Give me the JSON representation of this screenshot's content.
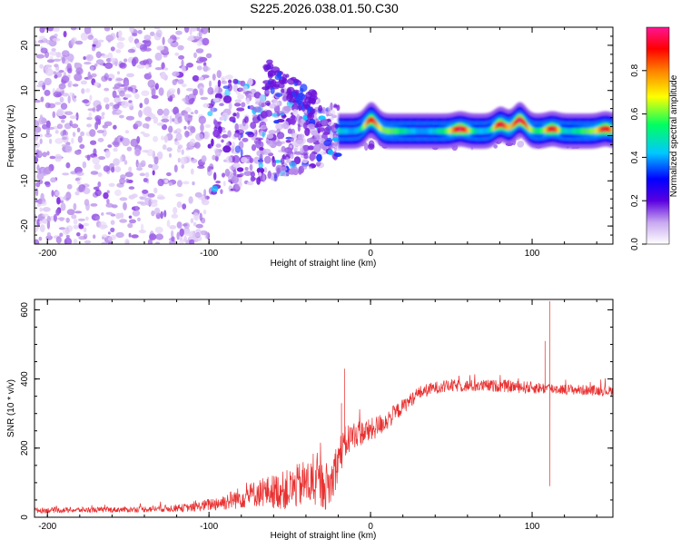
{
  "page_title": "S225.2026.038.01.50.C30",
  "colors": {
    "signal": "#e83030",
    "scatter": "#7b1fd6",
    "axis": "#000000",
    "background": "#ffffff"
  },
  "chart_data": [
    {
      "type": "heatmap",
      "title": "S225.2026.038.01.50.C30",
      "xlabel": "Height of straight line (km)",
      "ylabel": "Frequency (Hz)",
      "xlim": [
        -208,
        150
      ],
      "ylim": [
        -24,
        24
      ],
      "xticks": [
        -200,
        -100,
        0,
        100
      ],
      "yticks": [
        -20,
        -10,
        0,
        10,
        20
      ],
      "xtick_labels": [
        "-200",
        "-100",
        "0",
        "100"
      ],
      "ytick_labels": [
        "-20",
        "-10",
        "0",
        "10",
        "20"
      ],
      "colorbar": {
        "label": "Normalized spectral amplitude",
        "range": [
          0,
          1
        ],
        "ticks": [
          0.0,
          0.2,
          0.4,
          0.6,
          0.8
        ],
        "tick_labels": [
          "0.0",
          "0.2",
          "0.4",
          "0.6",
          "0.8"
        ],
        "colormap": [
          "#ffffff",
          "#5a00e0",
          "#0000ff",
          "#00c8ff",
          "#00ff60",
          "#ffff00",
          "#ff8000",
          "#ff0000",
          "#ff1493"
        ]
      },
      "band": {
        "x_start": -20,
        "x_end": 150,
        "frequency_center": 1.0,
        "frequency_halfwidth": 1.5,
        "peaks": [
          {
            "x": 0,
            "f": 3.5,
            "amp": 0.85
          },
          {
            "x": 55,
            "f": 1.5,
            "amp": 0.95
          },
          {
            "x": 80,
            "f": 2.5,
            "amp": 0.9
          },
          {
            "x": 92,
            "f": 3.5,
            "amp": 0.95
          },
          {
            "x": 112,
            "f": 1.5,
            "amp": 0.9
          },
          {
            "x": 145,
            "f": 1.5,
            "amp": 0.9
          }
        ]
      }
    },
    {
      "type": "line",
      "xlabel": "Height of straight line (km)",
      "ylabel": "SNR (10 * v/v)",
      "xlim": [
        -208,
        150
      ],
      "ylim": [
        0,
        630
      ],
      "xticks": [
        -200,
        -100,
        0,
        100
      ],
      "yticks": [
        0,
        200,
        400,
        600
      ],
      "xtick_labels": [
        "-200",
        "-100",
        "0",
        "100"
      ],
      "ytick_labels": [
        "0",
        "200",
        "400",
        "600"
      ],
      "series": [
        {
          "name": "SNR",
          "trend_x": [
            -208,
            -150,
            -110,
            -90,
            -70,
            -50,
            -40,
            -25,
            -20,
            -15,
            -10,
            0,
            10,
            20,
            30,
            40,
            50,
            80,
            100,
            120,
            150
          ],
          "trend_y": [
            20,
            22,
            28,
            45,
            70,
            80,
            100,
            90,
            170,
            220,
            240,
            250,
            280,
            320,
            360,
            375,
            380,
            380,
            375,
            370,
            365
          ],
          "noise": [
            8,
            8,
            12,
            25,
            40,
            60,
            70,
            70,
            60,
            50,
            40,
            35,
            30,
            22,
            20,
            18,
            18,
            18,
            18,
            15,
            15
          ],
          "spikes": [
            {
              "x": -16,
              "y": 430
            },
            {
              "x": -18,
              "y": 330
            },
            {
              "x": 111,
              "y": 625
            },
            {
              "x": 111,
              "y": 90
            },
            {
              "x": 108,
              "y": 510
            }
          ]
        }
      ]
    }
  ]
}
